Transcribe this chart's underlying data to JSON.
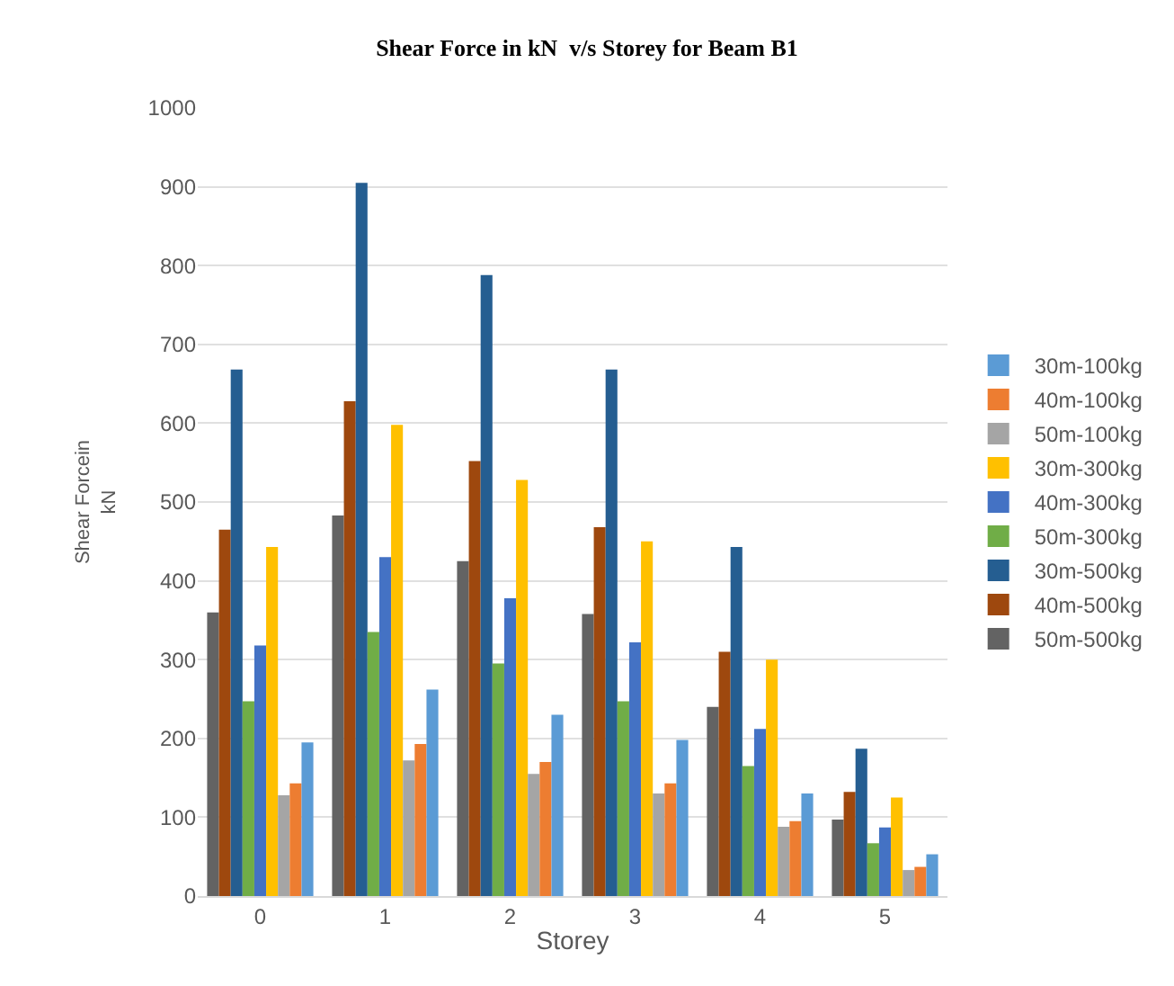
{
  "chart_data": {
    "type": "bar",
    "title": "Shear Force in kN  v/s Storey for Beam B1",
    "xlabel": "Storey",
    "ylabel": "Shear Forcein\nkN",
    "categories": [
      "0",
      "1",
      "2",
      "3",
      "4",
      "5"
    ],
    "series": [
      {
        "name": "50m-500kg",
        "color": "#636363",
        "values": [
          360,
          483,
          425,
          358,
          240,
          97
        ]
      },
      {
        "name": "40m-500kg",
        "color": "#9e480e",
        "values": [
          465,
          628,
          552,
          468,
          310,
          132
        ]
      },
      {
        "name": "30m-500kg",
        "color": "#255e91",
        "values": [
          668,
          905,
          788,
          668,
          443,
          187
        ]
      },
      {
        "name": "50m-300kg",
        "color": "#70ad47",
        "values": [
          247,
          335,
          295,
          247,
          165,
          67
        ]
      },
      {
        "name": "40m-300kg",
        "color": "#4472c4",
        "values": [
          318,
          430,
          378,
          322,
          212,
          87
        ]
      },
      {
        "name": "30m-300kg",
        "color": "#ffc000",
        "values": [
          443,
          598,
          528,
          450,
          300,
          125
        ]
      },
      {
        "name": "50m-100kg",
        "color": "#a5a5a5",
        "values": [
          128,
          172,
          155,
          130,
          88,
          33
        ]
      },
      {
        "name": "40m-100kg",
        "color": "#ed7d31",
        "values": [
          143,
          193,
          170,
          143,
          95,
          37
        ]
      },
      {
        "name": "30m-100kg",
        "color": "#5b9bd5",
        "values": [
          195,
          262,
          230,
          198,
          130,
          53
        ]
      }
    ],
    "ylim": [
      0,
      1000
    ],
    "yticks": [
      0,
      100,
      200,
      300,
      400,
      500,
      600,
      700,
      800,
      900,
      1000
    ],
    "grid": "y",
    "legend": "right"
  }
}
